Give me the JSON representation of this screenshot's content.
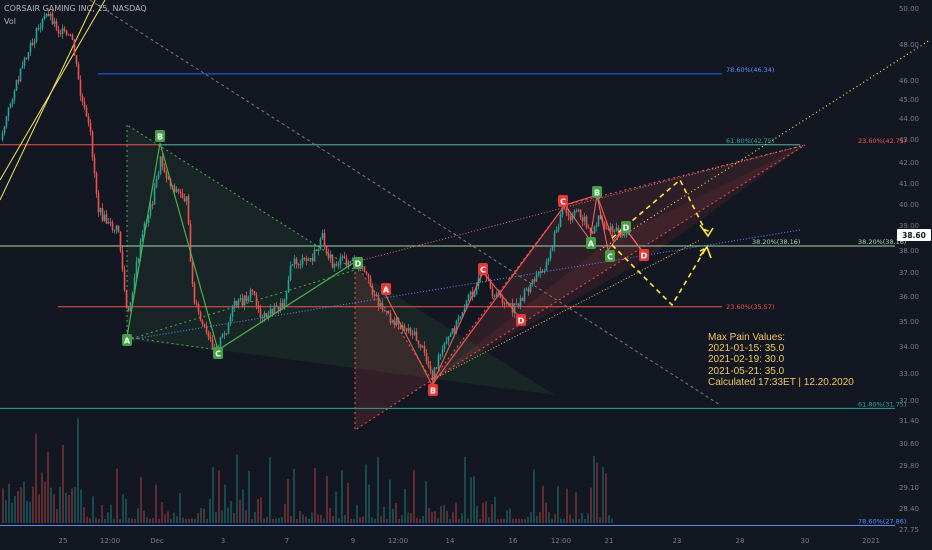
{
  "header": {
    "title": "CORSAIR GAMING INC, 15, NASDAQ",
    "volume_label": "Vol"
  },
  "max_pain": {
    "title": "Max Pain Values:",
    "lines": [
      "2021-01-15: 35.0",
      "2021-02-19: 30.0",
      "2021-05-21: 35.0",
      "Calculated 17:33ET | 12.20.2020"
    ]
  },
  "colors": {
    "background": "#131722",
    "grid": "#1e2230",
    "candle_up": "#26a69a",
    "candle_down": "#ef5350",
    "fib_blue": "#2962ff",
    "fib_teal": "#26a69a",
    "fib_red": "#ef5350",
    "fib_green": "#4caf50",
    "pattern_green": "#4caf50",
    "pattern_red": "#ef5350",
    "projection_yellow": "#ffeb3b",
    "axis_text": "#787b86",
    "price_tag": "#ffffff"
  },
  "chart_data": {
    "type": "candlestick",
    "title": "CORSAIR GAMING INC, 15, NASDAQ",
    "y_axis_ticks": [
      "50.00",
      "48.00",
      "46.00",
      "45.00",
      "44.00",
      "43.00",
      "42.00",
      "41.00",
      "40.00",
      "39.00",
      "38.00",
      "37.00",
      "36.00",
      "35.00",
      "34.00",
      "33.00",
      "32.00",
      "31.40",
      "30.60",
      "29.80",
      "29.10",
      "28.40",
      "27.75"
    ],
    "x_axis_ticks": [
      "25",
      "12:00",
      "Dec",
      "3",
      "7",
      "9",
      "12:00",
      "14",
      "16",
      "12:00",
      "21",
      "23",
      "28",
      "30",
      "2021"
    ],
    "current_price": "38.60",
    "fib_levels": [
      {
        "label": "78.60%(46.34)",
        "value": 46.34
      },
      {
        "label": "61.80%(42.75)",
        "value": 42.75
      },
      {
        "label": "23.60%(42.75)",
        "value": 42.75
      },
      {
        "label": "38.20%(38.16)",
        "value": 38.16
      },
      {
        "label": "38.20%(38.16)",
        "value": 38.16
      },
      {
        "label": "23.60%(35.57)",
        "value": 35.57
      },
      {
        "label": "61.80%(31.75)",
        "value": 31.75
      },
      {
        "label": "78.60%(27.86)",
        "value": 27.86
      }
    ],
    "pattern_points": {
      "green_harmonic": [
        {
          "label": "A",
          "value": 34.6
        },
        {
          "label": "B",
          "value": 42.8
        },
        {
          "label": "C",
          "value": 33.9
        },
        {
          "label": "D",
          "value": 37.3
        }
      ],
      "red_harmonic": [
        {
          "label": "A",
          "value": 35.8
        },
        {
          "label": "B",
          "value": 32.8
        },
        {
          "label": "C",
          "value": 36.9
        },
        {
          "label": "D",
          "value": 35.5
        }
      ],
      "right_pattern": [
        {
          "label": "C",
          "value": 40.0
        },
        {
          "label": "B",
          "value": 40.1
        },
        {
          "label": "A",
          "value": 38.3
        },
        {
          "label": "D",
          "value": 38.8
        },
        {
          "label": "C",
          "value": 37.8
        },
        {
          "label": "D",
          "value": 37.8
        }
      ]
    },
    "grid": false,
    "legend": "none"
  }
}
